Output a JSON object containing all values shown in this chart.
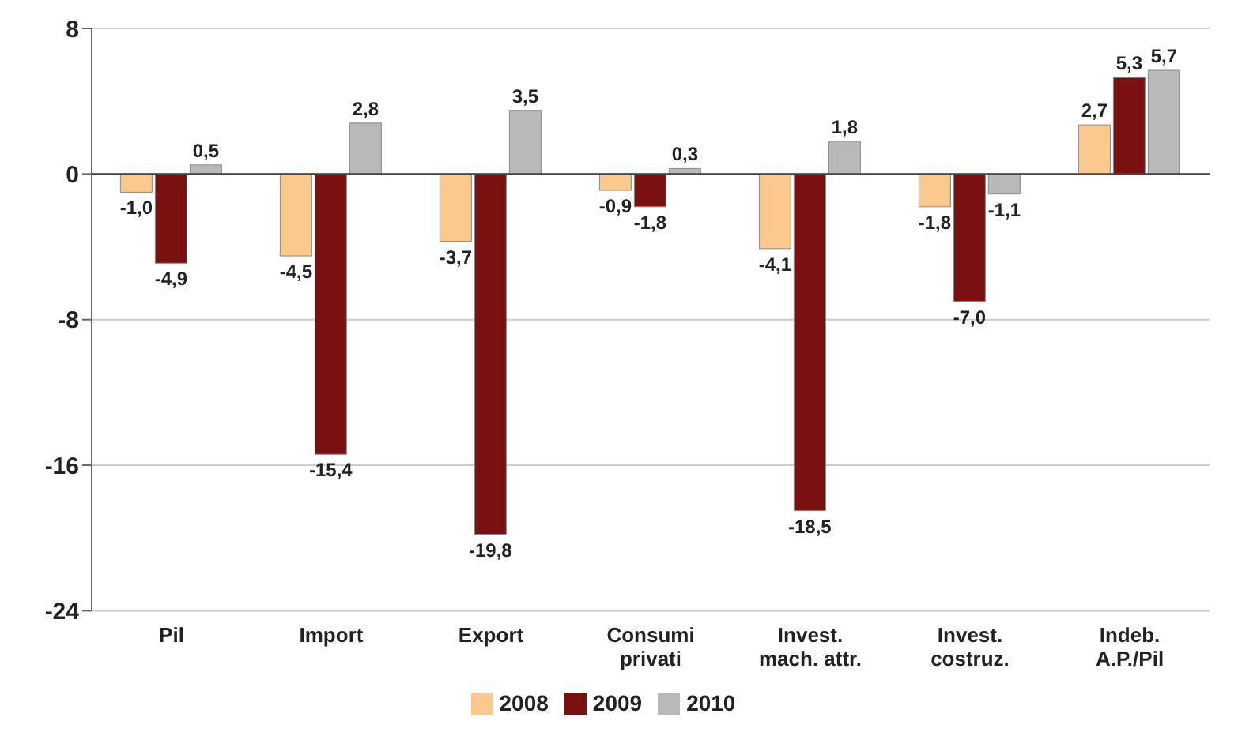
{
  "chart_data": {
    "type": "bar",
    "categories": [
      "Pil",
      "Import",
      "Export",
      "Consumi privati",
      "Invest. mach. attr.",
      "Invest. costruz.",
      "Indeb. A.P./Pil"
    ],
    "series": [
      {
        "name": "2008",
        "color": "#fbc88e",
        "values": [
          -1.0,
          -4.5,
          -3.7,
          -0.9,
          -4.1,
          -1.8,
          2.7
        ],
        "value_labels": [
          "-1,0",
          "-4,5",
          "-3,7",
          "-0,9",
          "-4,1",
          "-1,8",
          "2,7"
        ]
      },
      {
        "name": "2009",
        "color": "#7a1010",
        "values": [
          -4.9,
          -15.4,
          -19.8,
          -1.8,
          -18.5,
          -7.0,
          5.3
        ],
        "value_labels": [
          "-4,9",
          "-15,4",
          "-19,8",
          "-1,8",
          "-18,5",
          "-7,0",
          "5,3"
        ]
      },
      {
        "name": "2010",
        "color": "#b9b9b9",
        "values": [
          0.5,
          2.8,
          3.5,
          0.3,
          1.8,
          -1.1,
          5.7
        ],
        "value_labels": [
          "0,5",
          "2,8",
          "3,5",
          "0,3",
          "1,8",
          "-1,1",
          "5,7"
        ]
      }
    ],
    "ylim": [
      -24,
      8
    ],
    "yticks": [
      -24,
      -16,
      -8,
      0,
      8
    ],
    "grid": "y",
    "legend": "bottom"
  }
}
